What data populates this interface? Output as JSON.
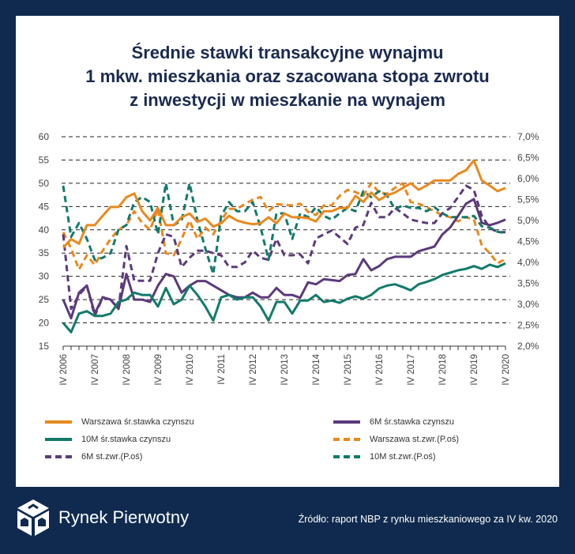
{
  "title_lines": [
    "Średnie stawki transakcyjne wynajmu",
    "1 mkw. mieszkania oraz szacowana stopa zwrotu",
    "z inwestycji w mieszkanie na wynajem"
  ],
  "brand": "Rynek Pierwotny",
  "source": "Źródło: raport NBP z rynku mieszkaniowego za IV kw. 2020",
  "colors": {
    "background": "#0f2a4e",
    "orange": "#e8891e",
    "purple": "#5b3a7a",
    "teal": "#127a6a",
    "title": "#1b2a4f"
  },
  "chart_data": {
    "type": "line",
    "x_tick_labels": [
      "IV 2006",
      "IV 2007",
      "IV 2008",
      "IV 2009",
      "IV 2010",
      "IV 2011",
      "IV 2012",
      "IV 2013",
      "IV 2014",
      "IV 2015",
      "IV 2016",
      "IV 2017",
      "IV 2018",
      "IV 2019",
      "IV 2020"
    ],
    "x_note": "quarterly, IV 2006 – IV 2020",
    "y_left": {
      "range": [
        15,
        60
      ],
      "ticks": [
        "15",
        "20",
        "25",
        "30",
        "35",
        "40",
        "45",
        "50",
        "55",
        "60"
      ]
    },
    "y_right": {
      "range": [
        2.0,
        7.0
      ],
      "ticks": [
        "2,0%",
        "2,5%",
        "3,0%",
        "3,5%",
        "4,0%",
        "4,5%",
        "5,0%",
        "5,5%",
        "6,0%",
        "6,5%",
        "7,0%"
      ]
    },
    "grid": true,
    "legend_position": "bottom",
    "series": [
      {
        "name": "Warszawa śr.stawka czynszu",
        "axis": "left",
        "style": "solid",
        "color": "#e8891e",
        "values": [
          36.2,
          38,
          37,
          41,
          41,
          43,
          44.9,
          44.9,
          47,
          47.8,
          44,
          42,
          44.7,
          41,
          41,
          42.7,
          43.5,
          41.7,
          42.4,
          40.7,
          41.4,
          43,
          42,
          41.5,
          41.2,
          41.4,
          42.7,
          41.4,
          43.5,
          42.7,
          42.7,
          42.5,
          41.8,
          44,
          44,
          44.7,
          44.7,
          47.3,
          46,
          48,
          46.4,
          47.4,
          48,
          49,
          50,
          48.6,
          49.5,
          50.6,
          50.6,
          50.6,
          52,
          52.8,
          54.9,
          50.6,
          49.5,
          48.3,
          49
        ]
      },
      {
        "name": "6M śr.stawka czynszu",
        "axis": "left",
        "style": "solid",
        "color": "#5b3a7a",
        "values": [
          25,
          21,
          26.5,
          28,
          22,
          25.5,
          25,
          23,
          30.5,
          25,
          25,
          24.5,
          28,
          30.5,
          30,
          26.5,
          28,
          29,
          29,
          28,
          27,
          26,
          25.5,
          25.5,
          26.5,
          25.5,
          25.5,
          27.5,
          26,
          26,
          25.4,
          28.7,
          28.3,
          29.4,
          29.2,
          29,
          30.3,
          30.5,
          33.7,
          31.3,
          32.2,
          33.7,
          34.2,
          34.2,
          34.2,
          35.4,
          35.9,
          36.4,
          39,
          40.5,
          43,
          45.6,
          46.6,
          41.5,
          41,
          41.5,
          42.2
        ]
      },
      {
        "name": "10M śr.stawka czynszu",
        "axis": "left",
        "style": "solid",
        "color": "#127a6a",
        "values": [
          20,
          18,
          22,
          22.5,
          21.5,
          21.5,
          22,
          24.5,
          25,
          26.5,
          26,
          26,
          23.5,
          27.5,
          24,
          25,
          28,
          26,
          23.5,
          20.5,
          25.5,
          26,
          25,
          25.5,
          25.5,
          23.5,
          20.5,
          24.5,
          24.5,
          22,
          24.8,
          24.8,
          26,
          24.5,
          24.8,
          24.3,
          25.2,
          25.7,
          25.2,
          26,
          27.4,
          28,
          28.3,
          27.7,
          27,
          28.3,
          28.8,
          29.4,
          30.3,
          30.8,
          31.3,
          31.6,
          32.2,
          31.6,
          32.5,
          32,
          32.8
        ]
      },
      {
        "name": "Warszawa st.zwr.(P.oś)",
        "axis": "right",
        "style": "dashed",
        "color": "#e8891e",
        "values": [
          4.72,
          4.33,
          3.83,
          4.17,
          3.94,
          4.28,
          4.56,
          4.78,
          4.89,
          5.22,
          4.94,
          4.78,
          5.28,
          4.22,
          4.17,
          4.56,
          5.0,
          4.56,
          4.83,
          4.67,
          5.0,
          5.28,
          5.28,
          5.39,
          5.5,
          5.56,
          5.22,
          5.39,
          5.37,
          5.36,
          5.4,
          5.21,
          5.13,
          5.36,
          5.36,
          5.59,
          5.73,
          5.68,
          5.59,
          5.89,
          5.67,
          5.64,
          5.78,
          5.89,
          5.44,
          5.4,
          5.32,
          5.22,
          5.13,
          5.08,
          4.98,
          5.08,
          5.02,
          4.41,
          4.22,
          3.98,
          4.08
        ]
      },
      {
        "name": "6M st.zwr.(P.oś)",
        "axis": "right",
        "style": "dashed",
        "color": "#5b3a7a",
        "values": [
          4.67,
          2.89,
          3.22,
          3.44,
          2.72,
          3.17,
          3.11,
          2.89,
          4.39,
          3.56,
          3.56,
          3.56,
          4.22,
          4.67,
          4.61,
          3.89,
          4.11,
          4.28,
          4.28,
          4.22,
          4.17,
          3.89,
          3.89,
          4.0,
          4.28,
          4.11,
          4.06,
          4.56,
          4.17,
          4.17,
          4.19,
          3.98,
          4.57,
          4.67,
          4.76,
          4.6,
          4.44,
          4.83,
          4.89,
          5.42,
          5.08,
          5.08,
          5.3,
          5.17,
          5.02,
          4.98,
          4.94,
          4.94,
          5.17,
          5.3,
          5.56,
          5.83,
          5.73,
          5.11,
          4.83,
          4.72,
          4.72
        ]
      },
      {
        "name": "10M st.zwr.(P.oś)",
        "axis": "right",
        "style": "dashed",
        "color": "#127a6a",
        "values": [
          5.83,
          4.61,
          4.94,
          4.56,
          4.06,
          4.11,
          4.22,
          4.78,
          4.89,
          5.44,
          5.56,
          5.44,
          4.67,
          5.89,
          4.89,
          5.0,
          5.89,
          5.0,
          4.33,
          3.72,
          5.11,
          5.44,
          5.22,
          5.22,
          5.44,
          4.83,
          4.06,
          5.17,
          5.17,
          4.56,
          5.17,
          5.08,
          5.32,
          5.11,
          5.02,
          5.17,
          5.3,
          5.22,
          5.7,
          5.56,
          5.7,
          5.6,
          5.27,
          5.36,
          5.3,
          5.3,
          5.22,
          5.32,
          5.17,
          5.08,
          5.08,
          5.08,
          5.11,
          4.86,
          4.83,
          4.73,
          4.7
        ]
      }
    ],
    "legend_order": [
      0,
      1,
      2,
      3,
      4,
      5
    ]
  }
}
